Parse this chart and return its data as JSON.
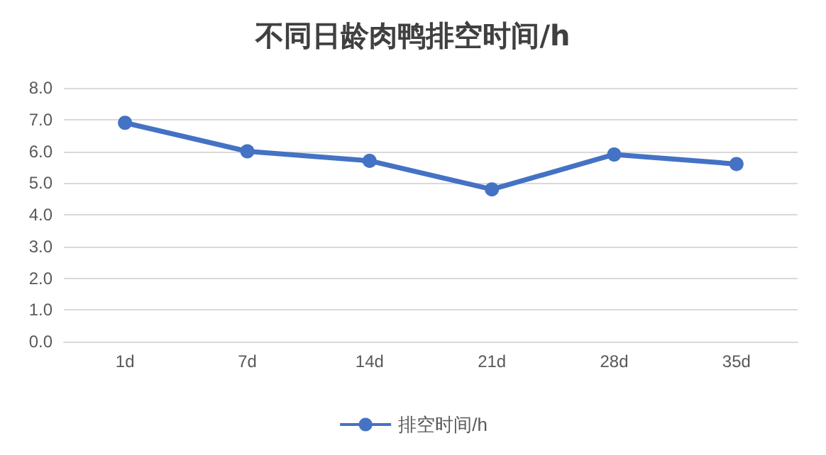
{
  "chart_data": {
    "type": "line",
    "title": "不同日龄肉鸭排空时间/h",
    "categories": [
      "1d",
      "7d",
      "14d",
      "21d",
      "28d",
      "35d"
    ],
    "series": [
      {
        "name": "排空时间/h",
        "color": "#4472c4",
        "values": [
          6.9,
          6.0,
          5.7,
          4.8,
          5.9,
          5.6
        ]
      }
    ],
    "ylim": [
      0,
      8
    ],
    "yticks": [
      {
        "value": 0,
        "label": "0.0"
      },
      {
        "value": 1,
        "label": "1.0"
      },
      {
        "value": 2,
        "label": "2.0"
      },
      {
        "value": 3,
        "label": "3.0"
      },
      {
        "value": 4,
        "label": "4.0"
      },
      {
        "value": 5,
        "label": "5.0"
      },
      {
        "value": 6,
        "label": "6.0"
      },
      {
        "value": 7,
        "label": "7.0"
      },
      {
        "value": 8,
        "label": "8.0"
      }
    ],
    "grid": "y",
    "legend": "bottom",
    "marker": "circle",
    "line_style": "solid"
  }
}
